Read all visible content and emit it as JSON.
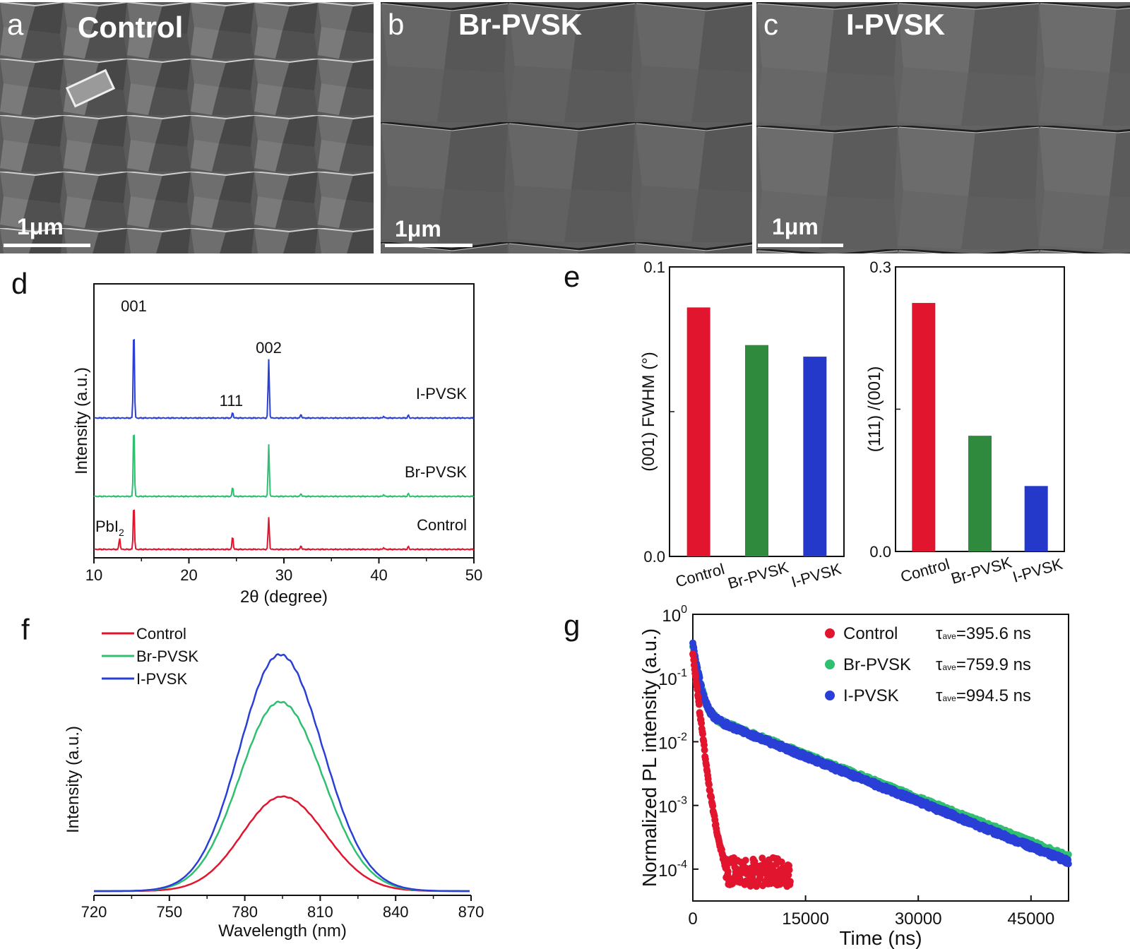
{
  "sem_panels": [
    {
      "letter": "a",
      "title": "Control",
      "scale": "1μm"
    },
    {
      "letter": "b",
      "title": "Br-PVSK",
      "scale": "1μm"
    },
    {
      "letter": "c",
      "title": "I-PVSK",
      "scale": "1μm"
    }
  ],
  "panel_letters": {
    "d": "d",
    "e": "e",
    "f": "f",
    "g": "g"
  },
  "colors": {
    "control": "#e2152e",
    "br": "#2fbf71",
    "i": "#2a3fd6",
    "bar_control": "#e2152e",
    "bar_br": "#2f8a3d",
    "bar_i": "#2438c9"
  },
  "chart_data": [
    {
      "id": "d",
      "type": "line",
      "xlabel": "2θ (degree)",
      "ylabel": "Intensity (a.u.)",
      "xlim": [
        10,
        50
      ],
      "xticks": [
        "10",
        "20",
        "30",
        "40",
        "50"
      ],
      "series": [
        {
          "name": "I-PVSK",
          "offset": 2,
          "peaks": [
            [
              14.2,
              1.0
            ],
            [
              24.6,
              0.06
            ],
            [
              28.4,
              0.62
            ],
            [
              31.8,
              0.04
            ],
            [
              40.5,
              0.02
            ],
            [
              43.1,
              0.03
            ]
          ]
        },
        {
          "name": "Br-PVSK",
          "offset": 1,
          "peaks": [
            [
              14.2,
              0.78
            ],
            [
              24.6,
              0.1
            ],
            [
              28.4,
              0.55
            ],
            [
              31.8,
              0.03
            ],
            [
              40.5,
              0.02
            ],
            [
              43.1,
              0.03
            ]
          ]
        },
        {
          "name": "Control",
          "offset": 0,
          "peaks": [
            [
              12.7,
              0.12
            ],
            [
              14.2,
              0.5
            ],
            [
              24.6,
              0.14
            ],
            [
              28.4,
              0.34
            ],
            [
              31.8,
              0.04
            ],
            [
              40.5,
              0.02
            ],
            [
              43.1,
              0.03
            ]
          ]
        }
      ],
      "annotations": {
        "p001": "001",
        "p002": "002",
        "p111": "111",
        "pbi": "PbI",
        "pbi_sub": "2"
      }
    },
    {
      "id": "e1",
      "type": "bar",
      "categories": [
        "Control",
        "Br-PVSK",
        "I-PVSK"
      ],
      "values": [
        0.086,
        0.073,
        0.069
      ],
      "ylim": [
        0,
        0.1
      ],
      "yticks": [
        "0.0",
        "0.1"
      ],
      "ylabel": "(001) FWHM (°)"
    },
    {
      "id": "e2",
      "type": "bar",
      "categories": [
        "Control",
        "Br-PVSK",
        "I-PVSK"
      ],
      "values": [
        0.262,
        0.122,
        0.069
      ],
      "ylim": [
        0,
        0.3
      ],
      "yticks": [
        "0.0",
        "0.3"
      ],
      "ylabel": "(111) /(001)"
    },
    {
      "id": "f",
      "type": "line",
      "xlabel": "Wavelength (nm)",
      "ylabel": "Intensity (a.u.)",
      "xlim": [
        720,
        870
      ],
      "xticks": [
        "720",
        "750",
        "780",
        "810",
        "840",
        "870"
      ],
      "series": [
        {
          "name": "Control",
          "center": 795,
          "amp": 0.4
        },
        {
          "name": "Br-PVSK",
          "center": 794,
          "amp": 0.8
        },
        {
          "name": "I-PVSK",
          "center": 794,
          "amp": 1.0
        }
      ]
    },
    {
      "id": "g",
      "type": "scatter",
      "xlabel": "Time (ns)",
      "ylabel": "Normalized PL intensity (a.u.)",
      "xlim": [
        0,
        50000
      ],
      "xticks": [
        "0",
        "15000",
        "30000",
        "45000"
      ],
      "ylim_log": [
        -4.5,
        0
      ],
      "yticks": [
        {
          "base": "10",
          "exp": "0"
        },
        {
          "base": "10",
          "exp": "-1"
        },
        {
          "base": "10",
          "exp": "-2"
        },
        {
          "base": "10",
          "exp": "-3"
        },
        {
          "base": "10",
          "exp": "-4"
        }
      ],
      "series": [
        {
          "name": "Control",
          "tau_label": "τ",
          "tau_sub": "ave",
          "tau_value": "=395.6 ns"
        },
        {
          "name": "Br-PVSK",
          "tau_label": "τ",
          "tau_sub": "ave",
          "tau_value": "=759.9 ns"
        },
        {
          "name": "I-PVSK",
          "tau_label": "τ",
          "tau_sub": "ave",
          "tau_value": "=994.5 ns"
        }
      ]
    }
  ]
}
